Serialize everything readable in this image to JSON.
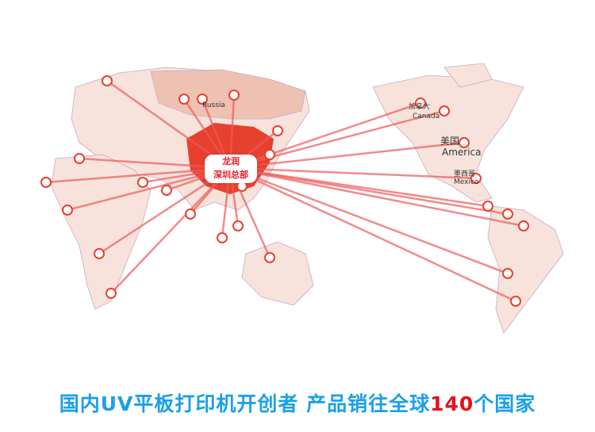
{
  "hub": {
    "line1": "龙润",
    "line2": "深圳总部"
  },
  "labels": {
    "russia": "Russia",
    "canada_cn": "加拿大",
    "canada_en": "Canada",
    "usa_cn": "美国",
    "usa_en": "America",
    "mexico_cn": "墨西哥",
    "mexico_en": "Mexico"
  },
  "slogan": {
    "before": "国内UV平板打印机开创者  产品销往全球",
    "number": "140",
    "after": "个国家"
  },
  "colors": {
    "land": "#f7e3dc",
    "china": "#e8402e",
    "lines": "#ee5a5a",
    "ocean": "#ffffff",
    "slogan": "#1aa0e8",
    "slogan_number": "#e8101a"
  }
}
